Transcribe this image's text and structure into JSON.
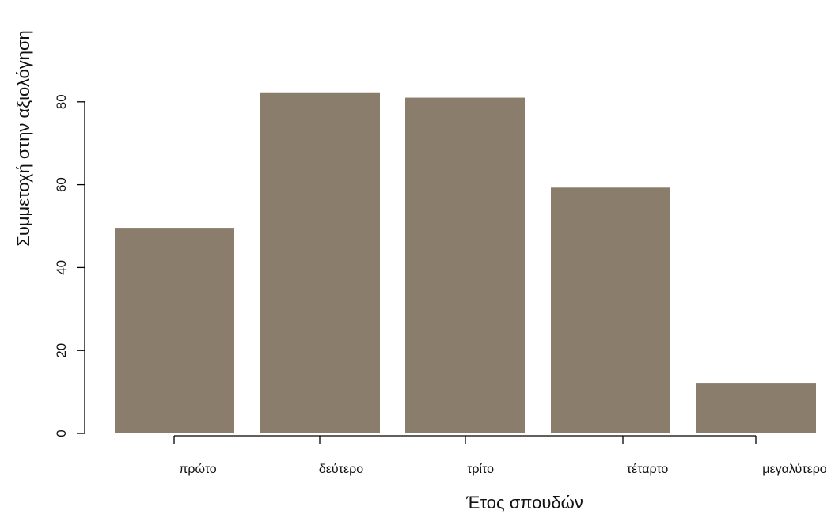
{
  "chart_data": {
    "type": "bar",
    "title": "",
    "xlabel": "Έτος σπουδών",
    "ylabel": "Συμμετοχή στην αξιολόγηση",
    "categories": [
      "πρώτο",
      "δεύτερο",
      "τρίτο",
      "τέταρτο",
      "μεγαλύτερο"
    ],
    "values": [
      49.6,
      82.3,
      81.0,
      59.3,
      12.2
    ],
    "ylim": [
      0,
      80
    ],
    "yticks": [
      0,
      20,
      40,
      60,
      80
    ],
    "grid": false,
    "bar_color": "#8b7d6b",
    "axis_color": "#000000"
  }
}
